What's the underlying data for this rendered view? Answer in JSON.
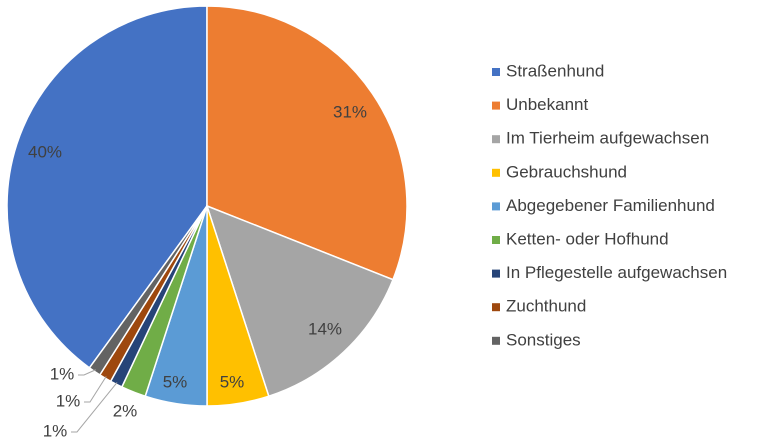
{
  "chart_data": {
    "type": "pie",
    "categories": [
      "Straßenhund",
      "Unbekannt",
      "Im Tierheim aufgewachsen",
      "Gebrauchshund",
      "Abgegebener Familienhund",
      "Ketten- oder Hofhund",
      "In Pflegestelle aufgewachsen",
      "Zuchthund",
      "Sonstiges"
    ],
    "values": [
      40,
      31,
      14,
      5,
      5,
      2,
      1,
      1,
      1
    ],
    "value_labels": [
      "40%",
      "31%",
      "14%",
      "5%",
      "5%",
      "2%",
      "1%",
      "1%",
      "1%"
    ],
    "colors": [
      "#4472c4",
      "#ed7d31",
      "#a5a5a5",
      "#ffc000",
      "#5b9bd5",
      "#70ad47",
      "#264478",
      "#9e480e",
      "#636363"
    ],
    "legend": "right"
  }
}
